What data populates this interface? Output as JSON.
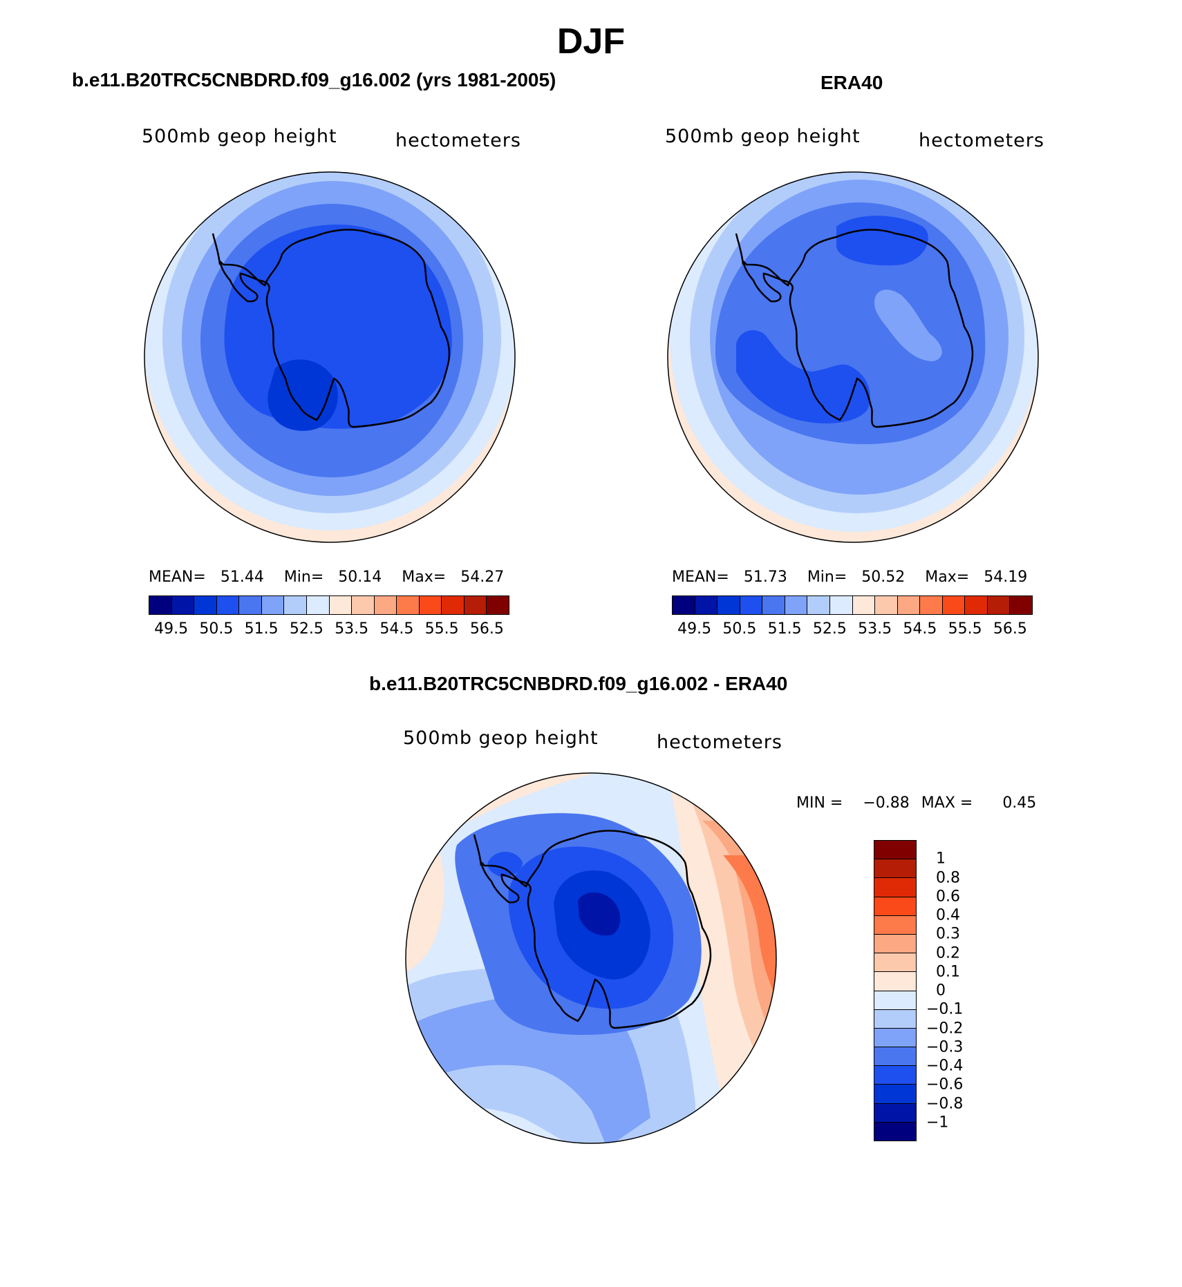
{
  "title": "DJF",
  "panels": {
    "model": {
      "title": "b.e11.B20TRC5CNBDRD.f09_g16.002 (yrs 1981-2005)",
      "left_label": "500mb geop height",
      "right_label": "hectometers",
      "stats": {
        "mean_label": "MEAN=",
        "mean": "51.44",
        "min_label": "Min=",
        "min": "50.14",
        "max_label": "Max=",
        "max": "54.27"
      }
    },
    "obs": {
      "title": "ERA40",
      "left_label": "500mb geop height",
      "right_label": "hectometers",
      "stats": {
        "mean_label": "MEAN=",
        "mean": "51.73",
        "min_label": "Min=",
        "min": "50.52",
        "max_label": "Max=",
        "max": "54.19"
      }
    },
    "diff": {
      "title": "b.e11.B20TRC5CNBDRD.f09_g16.002 - ERA40",
      "left_label": "500mb geop height",
      "right_label": "hectometers",
      "stats": {
        "min_label": "MIN =",
        "min": "−0.88",
        "max_label": "MAX =",
        "max": "0.45"
      }
    }
  },
  "colorbar_horizontal": {
    "colors": [
      "#00007f",
      "#0015a8",
      "#0036d6",
      "#1e50f0",
      "#4a76ef",
      "#7fa3f8",
      "#b3cdfb",
      "#dcebfd",
      "#fee8d9",
      "#fdc9ad",
      "#fca883",
      "#fd7a4a",
      "#fb4a1a",
      "#e02a06",
      "#b51d07",
      "#800000"
    ],
    "labels": [
      "49.5",
      "50.5",
      "51.5",
      "52.5",
      "53.5",
      "54.5",
      "55.5",
      "56.5"
    ]
  },
  "colorbar_vertical": {
    "colors": [
      "#800000",
      "#b51d07",
      "#e02a06",
      "#fb4a1a",
      "#fd7a4a",
      "#fca883",
      "#fdc9ad",
      "#fee8d9",
      "#dcebfd",
      "#b3cdfb",
      "#7fa3f8",
      "#4a76ef",
      "#1e50f0",
      "#0036d6",
      "#0015a8",
      "#00007f"
    ],
    "labels": [
      "1",
      "0.8",
      "0.6",
      "0.4",
      "0.3",
      "0.2",
      "0.1",
      "0",
      "−0.1",
      "−0.2",
      "−0.3",
      "−0.4",
      "−0.6",
      "−0.8",
      "−1"
    ]
  }
}
